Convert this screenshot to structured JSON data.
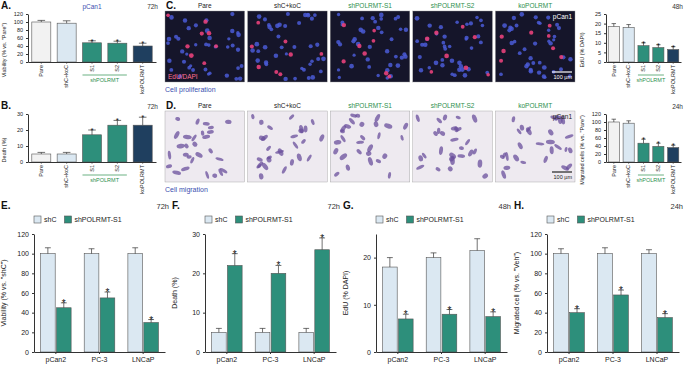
{
  "chart_data": [
    {
      "type": "bar",
      "title": "A.",
      "categories": [
        "Pare",
        "shC+koC",
        "S1",
        "S2",
        "koPOLRMT"
      ],
      "values": [
        100,
        97,
        48,
        47,
        40
      ],
      "errors": [
        4,
        6,
        5,
        5,
        7
      ],
      "significance": [
        null,
        null,
        "*",
        "*",
        "*"
      ],
      "colors": [
        "#f2f2f2",
        "#dbe8f2",
        "#2d8f7b",
        "#2d8f7b",
        "#1f3f5f"
      ],
      "groups": [
        {
          "label": "shPOLRMT",
          "start": 2,
          "end": 3
        }
      ],
      "y_label": "Viability (% vs. \"Pare\")",
      "ylim": [
        0,
        120
      ],
      "yticks": [
        0,
        20,
        40,
        60,
        80,
        100,
        120
      ],
      "grid": false,
      "annotations": [
        {
          "text": "pCan1",
          "anchor": "top-center"
        },
        {
          "text": "72h",
          "anchor": "top-right"
        }
      ]
    },
    {
      "type": "bar",
      "title": "B.",
      "categories": [
        "Pare",
        "shC+koC",
        "S1",
        "S2",
        "koPOLRMT"
      ],
      "values": [
        5,
        5,
        17,
        23,
        23
      ],
      "errors": [
        1,
        1,
        3,
        3,
        5
      ],
      "significance": [
        null,
        null,
        "*",
        "*",
        "*"
      ],
      "colors": [
        "#f2f2f2",
        "#dbe8f2",
        "#2d8f7b",
        "#2d8f7b",
        "#1f3f5f"
      ],
      "groups": [
        {
          "label": "shPOLRMT",
          "start": 2,
          "end": 3
        }
      ],
      "y_label": "Death (%)",
      "ylim": [
        0,
        30
      ],
      "yticks": [
        0,
        10,
        20,
        30
      ],
      "grid": false,
      "annotations": [
        {
          "text": "72h",
          "anchor": "top-right"
        }
      ]
    },
    {
      "type": "fluorescence",
      "title": "C.",
      "panels": [
        "Pare",
        "shC+koC",
        "shPOLRMT-S1",
        "shPOLRMT-S2",
        "koPOLRMT"
      ],
      "colors": [
        "#222222",
        "#222222",
        "#2d8f4e",
        "#2d8f4e",
        "#2d8f4e"
      ],
      "annotations": [
        {
          "text": "pCan1",
          "anchor": "last-top-right"
        },
        {
          "text": "EdU/DAPI",
          "anchor": "first-bottom-left"
        },
        {
          "text": "100 µm",
          "anchor": "last-bottom-right"
        },
        {
          "text": "Cell proliferation",
          "anchor": "below-left"
        }
      ]
    },
    {
      "type": "bar",
      "categories": [
        "Pare",
        "shC+koC",
        "S1",
        "S2",
        "koPOLRMT"
      ],
      "values": [
        18.5,
        18,
        8.5,
        7.5,
        6.5
      ],
      "errors": [
        1.5,
        1.5,
        1.5,
        1.5,
        1.5
      ],
      "significance": [
        null,
        null,
        "*",
        "*",
        "*"
      ],
      "colors": [
        "#f2f2f2",
        "#dbe8f2",
        "#2d8f7b",
        "#2d8f7b",
        "#1f3f5f"
      ],
      "groups": [
        {
          "label": "shPOLRMT",
          "start": 2,
          "end": 3
        }
      ],
      "y_label": "EdU (% DAPI)",
      "ylim": [
        0,
        25
      ],
      "yticks": [
        0,
        5,
        10,
        15,
        20,
        25
      ],
      "grid": false,
      "annotations": [
        {
          "text": "48h",
          "anchor": "top-right"
        }
      ]
    },
    {
      "type": "brightfield",
      "title": "D.",
      "panels": [
        "Pare",
        "shC+koC",
        "shPOLRMT-S1",
        "shPOLRMT-S2",
        "koPOLRMT"
      ],
      "colors": [
        "#222222",
        "#222222",
        "#2d8f4e",
        "#2d8f4e",
        "#2d8f4e"
      ],
      "annotations": [
        {
          "text": "pCan1",
          "anchor": "last-top-right"
        },
        {
          "text": "100 µm",
          "anchor": "last-bottom-right"
        },
        {
          "text": "Cell migration",
          "anchor": "below-left"
        }
      ]
    },
    {
      "type": "bar",
      "categories": [
        "Pare",
        "shC+koC",
        "S1",
        "S2",
        "koPOLRMT"
      ],
      "values": [
        100,
        97,
        47,
        39,
        36
      ],
      "errors": [
        7,
        6,
        10,
        8,
        6
      ],
      "significance": [
        null,
        null,
        "*",
        "*",
        "*"
      ],
      "colors": [
        "#f2f2f2",
        "#dbe8f2",
        "#2d8f7b",
        "#2d8f7b",
        "#1f3f5f"
      ],
      "groups": [
        {
          "label": "shPOLRMT",
          "start": 2,
          "end": 3
        }
      ],
      "y_label": "Migrated cells (% vs. \"Pare\")",
      "ylim": [
        0,
        120
      ],
      "yticks": [
        0,
        20,
        40,
        60,
        80,
        100,
        120
      ],
      "grid": false,
      "annotations": [
        {
          "text": "24h",
          "anchor": "top-right"
        }
      ]
    },
    {
      "type": "bar",
      "title": "E.",
      "categories": [
        "pCan2",
        "PC-3",
        "LNCaP"
      ],
      "series": [
        {
          "name": "shC",
          "color": "#dbe8f2",
          "values": [
            100,
            100,
            100
          ],
          "errors": [
            6,
            5,
            6
          ]
        },
        {
          "name": "shPOLRMT-S1",
          "color": "#2d8f7b",
          "values": [
            45,
            55,
            30
          ],
          "errors": [
            5,
            6,
            3
          ],
          "significance": [
            "*",
            "*",
            "*"
          ]
        }
      ],
      "y_label": "Viability (% vs. \"shC\")",
      "ylim": [
        0,
        120
      ],
      "yticks": [
        0,
        20,
        40,
        60,
        80,
        100,
        120
      ],
      "grid": false,
      "legend": "top-left",
      "annotations": [
        {
          "text": "72h",
          "anchor": "top-right"
        }
      ]
    },
    {
      "type": "bar",
      "title": "F.",
      "categories": [
        "pCan2",
        "PC-3",
        "LNCaP"
      ],
      "series": [
        {
          "name": "shC",
          "color": "#dbe8f2",
          "values": [
            5,
            5,
            5
          ],
          "errors": [
            1,
            1,
            1
          ]
        },
        {
          "name": "shPOLRMT-S1",
          "color": "#2d8f7b",
          "values": [
            22,
            20,
            26
          ],
          "errors": [
            3,
            2,
            3
          ],
          "significance": [
            "*",
            "*",
            "*"
          ]
        }
      ],
      "y_label": "Death (%)",
      "ylim": [
        0,
        30
      ],
      "yticks": [
        0,
        10,
        20,
        30
      ],
      "grid": false,
      "legend": "top-left",
      "annotations": [
        {
          "text": "72h",
          "anchor": "top-right"
        }
      ]
    },
    {
      "type": "bar",
      "title": "G.",
      "categories": [
        "pCan2",
        "PC-3",
        "LNCaP"
      ],
      "series": [
        {
          "name": "shC",
          "color": "#dbe8f2",
          "values": [
            18,
            20,
            21.5
          ],
          "errors": [
            2,
            1,
            2.5
          ]
        },
        {
          "name": "shPOLRMT-S1",
          "color": "#2d8f7b",
          "values": [
            7,
            8,
            7.5
          ],
          "errors": [
            1,
            1,
            1
          ],
          "significance": [
            "*",
            "*",
            "*"
          ]
        }
      ],
      "y_label": "EdU (% DAPI)",
      "ylim": [
        0,
        25
      ],
      "yticks": [
        0,
        10,
        20
      ],
      "grid": false,
      "legend": "top-left",
      "annotations": [
        {
          "text": "48h",
          "anchor": "top-right"
        }
      ]
    },
    {
      "type": "bar",
      "title": "H.",
      "categories": [
        "pCan2",
        "PC-3",
        "LNCaP"
      ],
      "series": [
        {
          "name": "shC",
          "color": "#dbe8f2",
          "values": [
            100,
            100,
            100
          ],
          "errors": [
            5,
            6,
            4
          ]
        },
        {
          "name": "shPOLRMT-S1",
          "color": "#2d8f7b",
          "values": [
            40,
            58,
            35
          ],
          "errors": [
            4,
            5,
            4
          ],
          "significance": [
            "*",
            "*",
            "*"
          ]
        }
      ],
      "y_label": "Migrated cell (% vs. \"Veh\")",
      "ylim": [
        0,
        120
      ],
      "yticks": [
        0,
        20,
        40,
        60,
        80,
        100,
        120
      ],
      "grid": false,
      "legend": "top-left",
      "annotations": [
        {
          "text": "24h",
          "anchor": "top-right"
        }
      ]
    }
  ]
}
